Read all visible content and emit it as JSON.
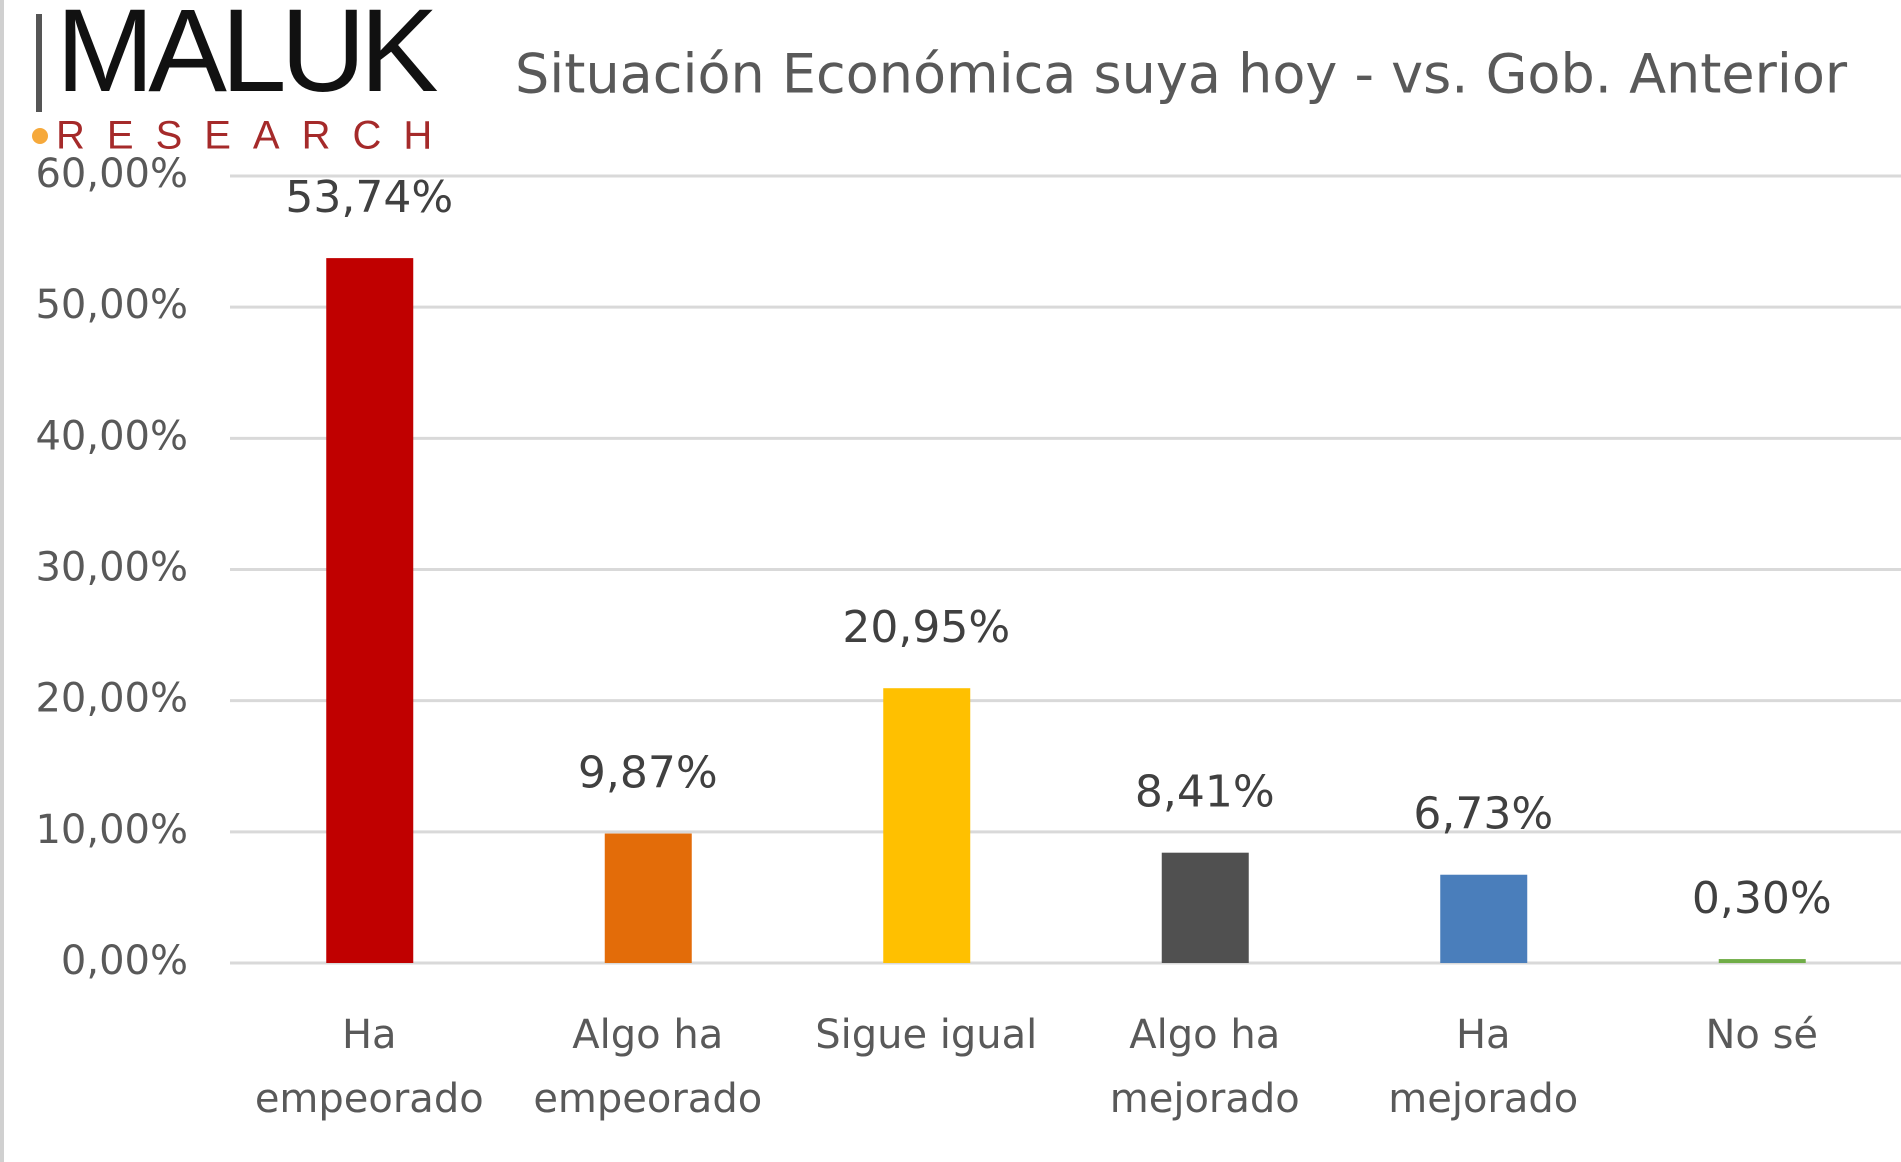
{
  "logo": {
    "name": "MALUK",
    "sub": "RESEARCH"
  },
  "chart_data": {
    "type": "bar",
    "title": "Situación Económica suya hoy - vs. Gob. Anterior",
    "categories": [
      "Ha empeorado",
      "Algo ha empeorado",
      "Sigue igual",
      "Algo ha mejorado",
      "Ha mejorado",
      "No sé"
    ],
    "values": [
      53.74,
      9.87,
      20.95,
      8.41,
      6.73,
      0.3
    ],
    "value_labels": [
      "53,74%",
      "9,87%",
      "20,95%",
      "8,41%",
      "6,73%",
      "0,30%"
    ],
    "colors": [
      "#c00000",
      "#e36c09",
      "#ffc000",
      "#505050",
      "#4a7ebb",
      "#70ad47"
    ],
    "ylim": [
      0,
      60
    ],
    "yticks": [
      {
        "value": 0,
        "label": "0,00%"
      },
      {
        "value": 10,
        "label": "10,00%"
      },
      {
        "value": 20,
        "label": "20,00%"
      },
      {
        "value": 30,
        "label": "30,00%"
      },
      {
        "value": 40,
        "label": "40,00%"
      },
      {
        "value": 50,
        "label": "50,00%"
      },
      {
        "value": 60,
        "label": "60,00%"
      }
    ],
    "grid": true
  }
}
